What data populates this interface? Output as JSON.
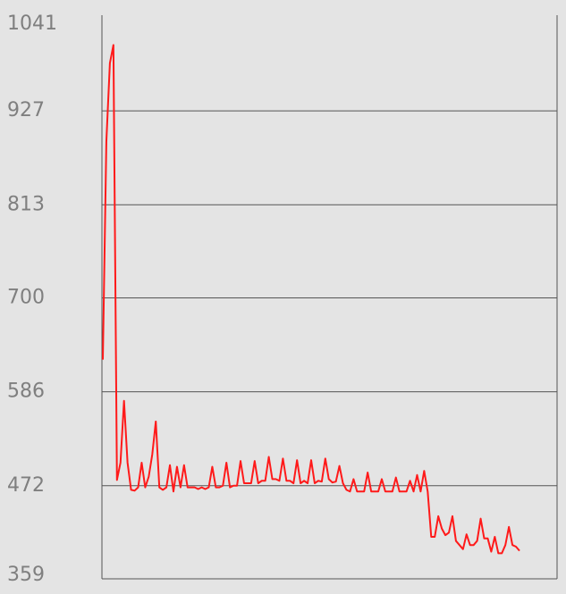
{
  "chart_data": {
    "type": "line",
    "title": "",
    "xlabel": "",
    "ylabel": "",
    "ylim": [
      359,
      1041
    ],
    "yticks": [
      1041,
      927,
      813,
      700,
      586,
      472,
      359
    ],
    "grid": true,
    "series": [
      {
        "color": "#ff1a1a",
        "values": [
          625,
          890,
          985,
          1007,
          479,
          500,
          575,
          500,
          467,
          466,
          470,
          500,
          470,
          483,
          510,
          550,
          470,
          467,
          470,
          497,
          465,
          495,
          470,
          497,
          470,
          470,
          470,
          468,
          470,
          468,
          470,
          495,
          470,
          470,
          472,
          500,
          470,
          472,
          472,
          502,
          475,
          475,
          475,
          502,
          475,
          478,
          478,
          507,
          480,
          480,
          478,
          505,
          478,
          478,
          475,
          503,
          475,
          478,
          475,
          503,
          475,
          478,
          477,
          505,
          480,
          476,
          477,
          496,
          475,
          467,
          465,
          480,
          465,
          465,
          465,
          488,
          465,
          465,
          465,
          480,
          465,
          465,
          465,
          482,
          465,
          465,
          465,
          478,
          465,
          485,
          465,
          490,
          465,
          410,
          410,
          435,
          420,
          412,
          415,
          435,
          405,
          400,
          395,
          413,
          400,
          400,
          405,
          432,
          408,
          408,
          392,
          410,
          390,
          390,
          400,
          422,
          400,
          398,
          393
        ]
      }
    ]
  }
}
